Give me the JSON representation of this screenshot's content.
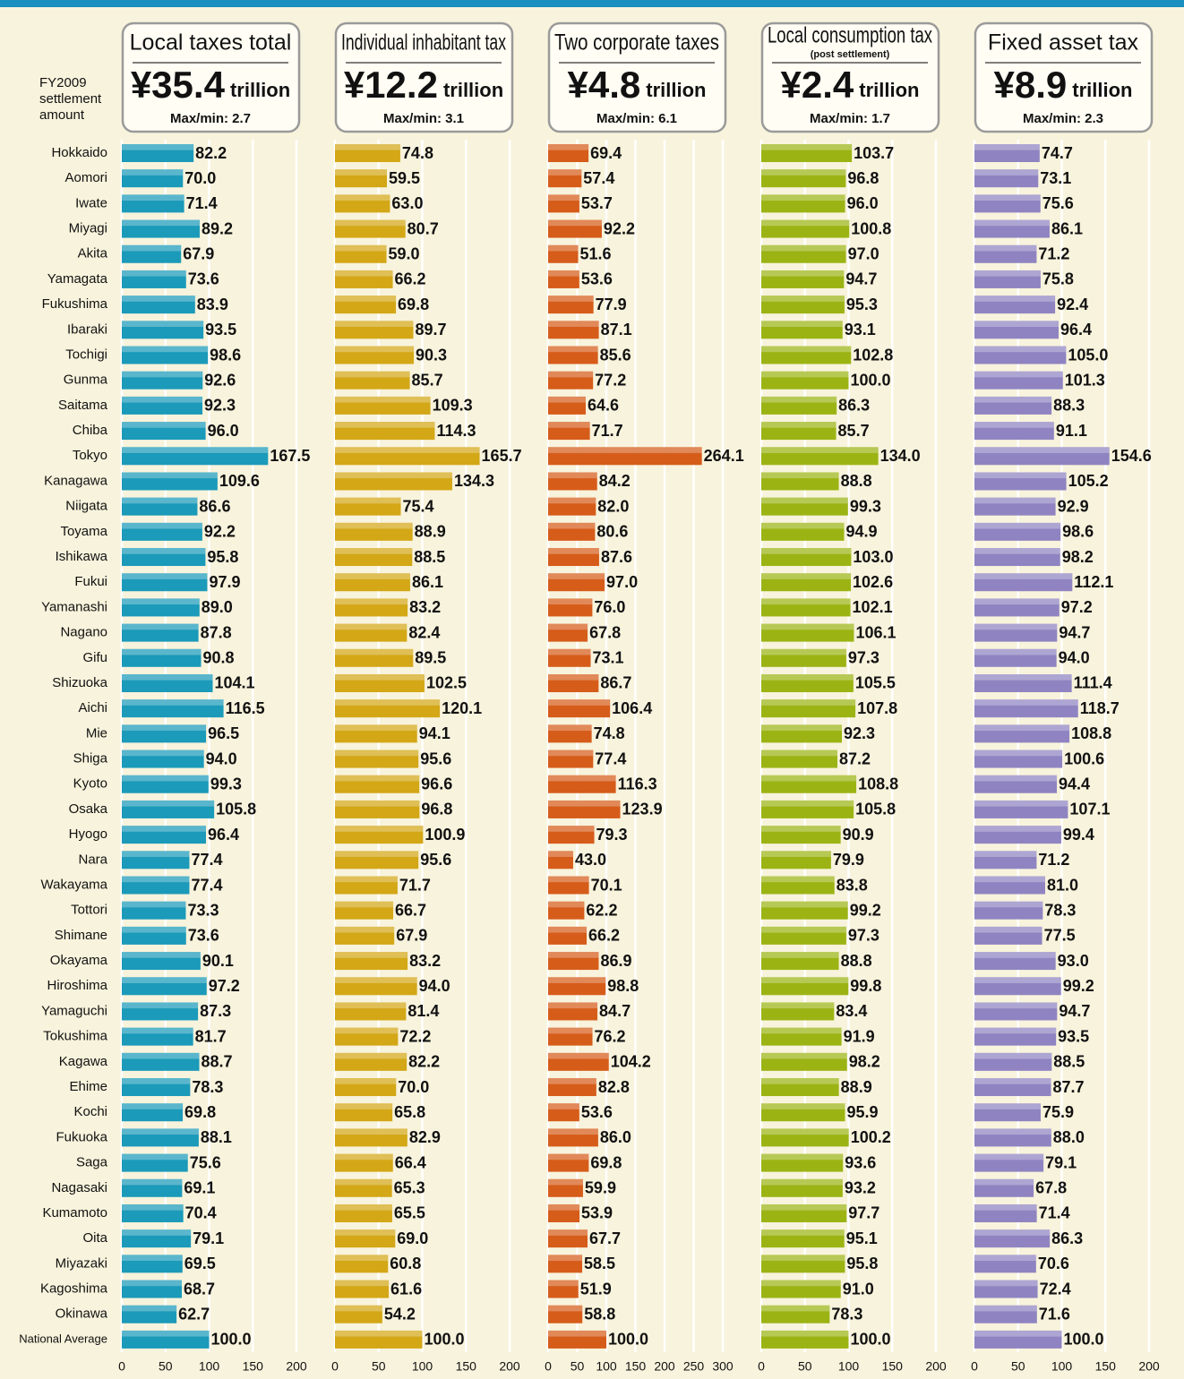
{
  "side_label": "FY2009 settlement amount",
  "categories": [
    "Hokkaido",
    "Aomori",
    "Iwate",
    "Miyagi",
    "Akita",
    "Yamagata",
    "Fukushima",
    "Ibaraki",
    "Tochigi",
    "Gunma",
    "Saitama",
    "Chiba",
    "Tokyo",
    "Kanagawa",
    "Niigata",
    "Toyama",
    "Ishikawa",
    "Fukui",
    "Yamanashi",
    "Nagano",
    "Gifu",
    "Shizuoka",
    "Aichi",
    "Mie",
    "Shiga",
    "Kyoto",
    "Osaka",
    "Hyogo",
    "Nara",
    "Wakayama",
    "Tottori",
    "Shimane",
    "Okayama",
    "Hiroshima",
    "Yamaguchi",
    "Tokushima",
    "Kagawa",
    "Ehime",
    "Kochi",
    "Fukuoka",
    "Saga",
    "Nagasaki",
    "Kumamoto",
    "Oita",
    "Miyazaki",
    "Kagoshima",
    "Okinawa",
    "National Average"
  ],
  "chart_data": [
    {
      "type": "bar",
      "title": "Local taxes total",
      "amount": "¥35.4",
      "unit": "trillion",
      "note": "Max/min: 2.7",
      "color": "#1b9ab9",
      "grid": true,
      "xlim": [
        0,
        200
      ],
      "xticks": [
        0,
        50,
        100,
        150,
        200
      ],
      "values": [
        82.2,
        70.0,
        71.4,
        89.2,
        67.9,
        73.6,
        83.9,
        93.5,
        98.6,
        92.6,
        92.3,
        96.0,
        167.5,
        109.6,
        86.6,
        92.2,
        95.8,
        97.9,
        89.0,
        87.8,
        90.8,
        104.1,
        116.5,
        96.5,
        94.0,
        99.3,
        105.8,
        96.4,
        77.4,
        77.4,
        73.3,
        73.6,
        90.1,
        97.2,
        87.3,
        81.7,
        88.7,
        78.3,
        69.8,
        88.1,
        75.6,
        69.1,
        70.4,
        79.1,
        69.5,
        68.7,
        62.7,
        100.0
      ],
      "value_labels": [
        "82.2",
        "70.0",
        "71.4",
        "89.2",
        "67.9",
        "73.6",
        "83.9",
        "93.5",
        "98.6",
        "92.6",
        "92.3",
        "96.0",
        "167.5",
        "109.6",
        "86.6",
        "92.2",
        "95.8",
        "97.9",
        "89.0",
        "87.8",
        "90.8",
        "104.1",
        "116.5",
        "96.5",
        "94.0",
        "99.3",
        "105.8",
        "96.4",
        "77.4",
        "77.4",
        "73.3",
        "73.6",
        "90.1",
        "97.2",
        "87.3",
        "81.7",
        "88.7",
        "78.3",
        "69.8",
        "88.1",
        "75.6",
        "69.1",
        "70.4",
        "79.1",
        "69.5",
        "68.7",
        "62.7",
        "100.0"
      ]
    },
    {
      "type": "bar",
      "title": "Individual inhabitant tax",
      "amount": "¥12.2",
      "unit": "trillion",
      "note": "Max/min: 3.1",
      "color": "#d3a716",
      "grid": true,
      "xlim": [
        0,
        200
      ],
      "xticks": [
        0,
        50,
        100,
        150,
        200
      ],
      "values": [
        74.8,
        59.5,
        63.0,
        80.7,
        59.0,
        66.2,
        69.8,
        89.7,
        90.3,
        85.7,
        109.3,
        114.3,
        165.7,
        134.3,
        75.4,
        88.9,
        88.5,
        86.1,
        83.2,
        82.4,
        89.5,
        102.5,
        120.1,
        94.1,
        95.6,
        96.6,
        96.8,
        100.9,
        95.6,
        71.7,
        66.7,
        67.9,
        83.2,
        94.0,
        81.4,
        72.2,
        82.2,
        70.0,
        65.8,
        82.9,
        66.4,
        65.3,
        65.5,
        69.0,
        60.8,
        61.6,
        54.2,
        100.0
      ],
      "value_labels": [
        "74.8",
        "59.5",
        "63.0",
        "80.7",
        "59.0",
        "66.2",
        "69.8",
        "89.7",
        "90.3",
        "85.7",
        "109.3",
        "114.3",
        "165.7",
        "134.3",
        "75.4",
        "88.9",
        "88.5",
        "86.1",
        "83.2",
        "82.4",
        "89.5",
        "102.5",
        "120.1",
        "94.1",
        "95.6",
        "96.6",
        "96.8",
        "100.9",
        "95.6",
        "71.7",
        "66.7",
        "67.9",
        "83.2",
        "94.0",
        "81.4",
        "72.2",
        "82.2",
        "70.0",
        "65.8",
        "82.9",
        "66.4",
        "65.3",
        "65.5",
        "69.0",
        "60.8",
        "61.6",
        "54.2",
        "100.0"
      ]
    },
    {
      "type": "bar",
      "title": "Two corporate taxes",
      "amount": "¥4.8",
      "unit": "trillion",
      "note": "Max/min: 6.1",
      "color": "#d65c1a",
      "grid": true,
      "xlim": [
        0,
        300
      ],
      "xticks": [
        0,
        50,
        100,
        150,
        200,
        250,
        300
      ],
      "values": [
        69.4,
        57.4,
        53.7,
        92.2,
        51.6,
        53.6,
        77.9,
        87.1,
        85.6,
        77.2,
        64.6,
        71.7,
        264.1,
        84.2,
        82.0,
        80.6,
        87.6,
        97.0,
        76.0,
        67.8,
        73.1,
        86.7,
        106.4,
        74.8,
        77.4,
        116.3,
        123.9,
        79.3,
        43.0,
        70.1,
        62.2,
        66.2,
        86.9,
        98.8,
        84.7,
        76.2,
        104.2,
        82.8,
        53.6,
        86.0,
        69.8,
        59.9,
        53.9,
        67.7,
        58.5,
        51.9,
        58.8,
        100.0
      ],
      "value_labels": [
        "69.4",
        "57.4",
        "53.7",
        "92.2",
        "51.6",
        "53.6",
        "77.9",
        "87.1",
        "85.6",
        "77.2",
        "64.6",
        "71.7",
        "264.1",
        "84.2",
        "82.0",
        "80.6",
        "87.6",
        "97.0",
        "76.0",
        "67.8",
        "73.1",
        "86.7",
        "106.4",
        "74.8",
        "77.4",
        "116.3",
        "123.9",
        "79.3",
        "43.0",
        "70.1",
        "62.2",
        "66.2",
        "86.9",
        "98.8",
        "84.7",
        "76.2",
        "104.2",
        "82.8",
        "53.6",
        "86.0",
        "69.8",
        "59.9",
        "53.9",
        "67.7",
        "58.5",
        "51.9",
        "58.8",
        "100.0"
      ]
    },
    {
      "type": "bar",
      "title": "Local consumption tax",
      "subtitle": "(post settlement)",
      "amount": "¥2.4",
      "unit": "trillion",
      "note": "Max/min: 1.7",
      "color": "#9bb414",
      "grid": true,
      "xlim": [
        0,
        200
      ],
      "xticks": [
        0,
        50,
        100,
        150,
        200
      ],
      "values": [
        103.7,
        96.8,
        96.0,
        100.8,
        97.0,
        94.7,
        95.3,
        93.1,
        102.8,
        100.0,
        86.3,
        85.7,
        134.0,
        88.8,
        99.3,
        94.9,
        103.0,
        102.6,
        102.1,
        106.1,
        97.3,
        105.5,
        107.8,
        92.3,
        87.2,
        108.8,
        105.8,
        90.9,
        79.9,
        83.8,
        99.2,
        97.3,
        88.8,
        99.8,
        83.4,
        91.9,
        98.2,
        88.9,
        95.9,
        100.2,
        93.6,
        93.2,
        97.7,
        95.1,
        95.8,
        91.0,
        78.3,
        100.0
      ],
      "value_labels": [
        "103.7",
        "96.8",
        "96.0",
        "100.8",
        "97.0",
        "94.7",
        "95.3",
        "93.1",
        "102.8",
        "100.0",
        "86.3",
        "85.7",
        "134.0",
        "88.8",
        "99.3",
        "94.9",
        "103.0",
        "102.6",
        "102.1",
        "106.1",
        "97.3",
        "105.5",
        "107.8",
        "92.3",
        "87.2",
        "108.8",
        "105.8",
        "90.9",
        "79.9",
        "83.8",
        "99.2",
        "97.3",
        "88.8",
        "99.8",
        "83.4",
        "91.9",
        "98.2",
        "88.9",
        "95.9",
        "100.2",
        "93.6",
        "93.2",
        "97.7",
        "95.1",
        "95.8",
        "91.0",
        "78.3",
        "100.0"
      ]
    },
    {
      "type": "bar",
      "title": "Fixed asset tax",
      "amount": "¥8.9",
      "unit": "trillion",
      "note": "Max/min: 2.3",
      "color": "#8f84c1",
      "grid": true,
      "xlim": [
        0,
        200
      ],
      "xticks": [
        0,
        50,
        100,
        150,
        200
      ],
      "values": [
        74.7,
        73.1,
        75.6,
        86.1,
        71.2,
        75.8,
        92.4,
        96.4,
        105.0,
        101.3,
        88.3,
        91.1,
        154.6,
        105.2,
        92.9,
        98.6,
        98.2,
        112.1,
        97.2,
        94.7,
        94.0,
        111.4,
        118.7,
        108.8,
        100.6,
        94.4,
        107.1,
        99.4,
        71.2,
        81.0,
        78.3,
        77.5,
        93.0,
        99.2,
        94.7,
        93.5,
        88.5,
        87.7,
        75.9,
        88.0,
        79.1,
        67.8,
        71.4,
        86.3,
        70.6,
        72.4,
        71.6,
        100.0
      ],
      "value_labels": [
        "74.7",
        "73.1",
        "75.6",
        "86.1",
        "71.2",
        "75.8",
        "92.4",
        "96.4",
        "105.0",
        "101.3",
        "88.3",
        "91.1",
        "154.6",
        "105.2",
        "92.9",
        "98.6",
        "98.2",
        "112.1",
        "97.2",
        "94.7",
        "94.0",
        "111.4",
        "118.7",
        "108.8",
        "100.6",
        "94.4",
        "107.1",
        "99.4",
        "71.2",
        "81.0",
        "78.3",
        "77.5",
        "93.0",
        "99.2",
        "94.7",
        "93.5",
        "88.5",
        "87.7",
        "75.9",
        "88.0",
        "79.1",
        "67.8",
        "71.4",
        "86.3",
        "70.6",
        "72.4",
        "71.6",
        "100.0"
      ]
    }
  ]
}
